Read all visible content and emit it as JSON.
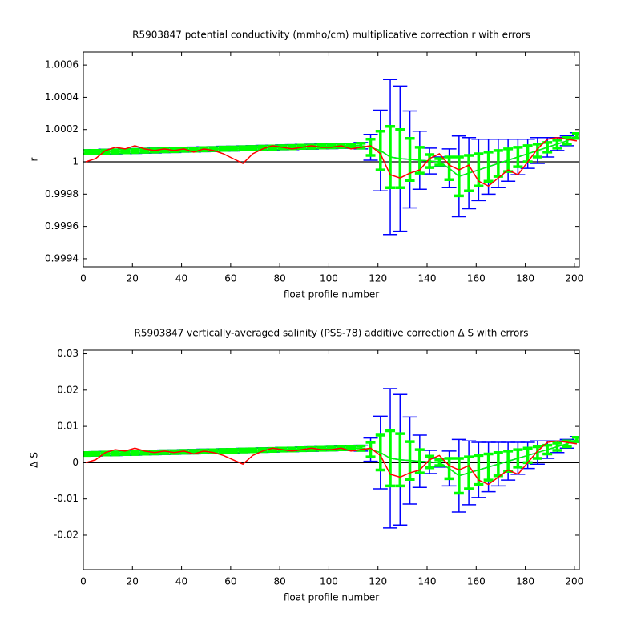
{
  "chart_data": [
    {
      "type": "errorbar",
      "title": "R5903847 potential conductivity (mmho/cm) multiplicative correction r with errors",
      "xlabel": "float profile number",
      "ylabel": "r",
      "x": [
        1,
        5,
        9,
        13,
        17,
        21,
        25,
        29,
        33,
        37,
        41,
        45,
        49,
        53,
        57,
        61,
        65,
        69,
        73,
        77,
        81,
        85,
        89,
        93,
        97,
        101,
        105,
        109,
        113,
        117,
        121,
        125,
        129,
        133,
        137,
        141,
        145,
        149,
        153,
        157,
        161,
        165,
        169,
        173,
        177,
        181,
        185,
        189,
        193,
        197,
        201
      ],
      "xlim": [
        0,
        202
      ],
      "xticks": [
        0,
        20,
        40,
        60,
        80,
        100,
        120,
        140,
        160,
        180,
        200
      ],
      "ylim": [
        0.99935,
        1.00068
      ],
      "yticks": [
        0.9994,
        0.9996,
        0.9998,
        1,
        1.0002,
        1.0004,
        1.0006
      ],
      "hline": 1,
      "series": [
        {
          "color": "#0000ff",
          "values": [
            1.00006,
            1.000061,
            1.000063,
            1.000064,
            1.000066,
            1.000067,
            1.000069,
            1.00007,
            1.000072,
            1.000073,
            1.000075,
            1.000076,
            1.000078,
            1.000079,
            1.000081,
            1.000082,
            1.000084,
            1.000085,
            1.000087,
            1.000088,
            1.00009,
            1.000091,
            1.000093,
            1.000094,
            1.000096,
            1.000097,
            1.000099,
            1.0001,
            1.0001,
            1.00009,
            1.00007,
            1.00003,
            1.00002,
            1.000015,
            1.00001,
            1.000005,
            1,
            0.99996,
            0.99991,
            0.99993,
            0.99995,
            0.99997,
            0.99999,
            1.00001,
            1.00003,
            1.00005,
            1.00007,
            1.00009,
            1.00011,
            1.00013,
            1.00016
          ],
          "errors": [
            1.5e-05,
            1.5e-05,
            1.5e-05,
            1.5e-05,
            1.5e-05,
            1.5e-05,
            1.5e-05,
            1.5e-05,
            1.5e-05,
            1.5e-05,
            1.5e-05,
            1.5e-05,
            1.5e-05,
            1.5e-05,
            1.5e-05,
            1.5e-05,
            1.5e-05,
            1.5e-05,
            1.5e-05,
            1.5e-05,
            1.5e-05,
            1.5e-05,
            1.5e-05,
            1.5e-05,
            1.5e-05,
            1.5e-05,
            1.5e-05,
            1.5e-05,
            2e-05,
            8e-05,
            0.00025,
            0.00048,
            0.00045,
            0.0003,
            0.00018,
            8e-05,
            3e-05,
            0.00012,
            0.00025,
            0.00022,
            0.00019,
            0.00017,
            0.00015,
            0.00013,
            0.00011,
            9e-05,
            8e-05,
            6e-05,
            4e-05,
            3e-05,
            2e-05
          ]
        },
        {
          "color": "#00ff00",
          "values": [
            1.00006,
            1.000061,
            1.000063,
            1.000064,
            1.000066,
            1.000067,
            1.000069,
            1.00007,
            1.000072,
            1.000073,
            1.000075,
            1.000076,
            1.000078,
            1.000079,
            1.000081,
            1.000082,
            1.000084,
            1.000085,
            1.000087,
            1.000088,
            1.00009,
            1.000091,
            1.000093,
            1.000094,
            1.000096,
            1.000097,
            1.000099,
            1.0001,
            1.0001,
            1.00009,
            1.00007,
            1.00003,
            1.00002,
            1.000015,
            1.00001,
            1.000005,
            1,
            0.99996,
            0.99991,
            0.99993,
            0.99995,
            0.99997,
            0.99999,
            1.00001,
            1.00003,
            1.00005,
            1.00007,
            1.00009,
            1.00011,
            1.00013,
            1.00016
          ],
          "errors": [
            1e-05,
            1e-05,
            1e-05,
            1e-05,
            1e-05,
            1e-05,
            1e-05,
            1e-05,
            1e-05,
            1e-05,
            1e-05,
            1e-05,
            1e-05,
            1e-05,
            1e-05,
            1e-05,
            1e-05,
            1e-05,
            1e-05,
            1e-05,
            1e-05,
            1e-05,
            1e-05,
            1e-05,
            1e-05,
            1e-05,
            1e-05,
            1e-05,
            1.5e-05,
            5e-05,
            0.00012,
            0.00019,
            0.00018,
            0.00013,
            8e-05,
            4e-05,
            2e-05,
            7e-05,
            0.00012,
            0.00011,
            0.0001,
            9e-05,
            8e-05,
            7e-05,
            6e-05,
            5e-05,
            4e-05,
            3e-05,
            2.5e-05,
            2e-05,
            1.5e-05
          ]
        },
        {
          "color": "#ff0000",
          "values": [
            1,
            1.00002,
            1.00007,
            1.00009,
            1.00008,
            1.0001,
            1.00008,
            1.00007,
            1.00008,
            1.00007,
            1.00008,
            1.00006,
            1.00008,
            1.00007,
            1.00005,
            1.00002,
            0.99999,
            1.00005,
            1.00008,
            1.0001,
            1.00009,
            1.00008,
            1.00009,
            1.0001,
            1.00009,
            1.00009,
            1.0001,
            1.00008,
            1.00009,
            1.0001,
            1.00005,
            0.99992,
            0.9999,
            0.99993,
            0.99995,
            1.00002,
            1.00005,
            0.99998,
            0.99995,
            0.99998,
            0.99988,
            0.99985,
            0.9999,
            0.99995,
            0.99992,
            1,
            1.00008,
            1.00014,
            1.00015,
            1.00014,
            1.00013
          ]
        }
      ]
    },
    {
      "type": "errorbar",
      "title": "R5903847 vertically-averaged salinity (PSS-78) additive correction Δ S with errors",
      "xlabel": "float profile number",
      "ylabel": "Δ S",
      "x": [
        1,
        5,
        9,
        13,
        17,
        21,
        25,
        29,
        33,
        37,
        41,
        45,
        49,
        53,
        57,
        61,
        65,
        69,
        73,
        77,
        81,
        85,
        89,
        93,
        97,
        101,
        105,
        109,
        113,
        117,
        121,
        125,
        129,
        133,
        137,
        141,
        145,
        149,
        153,
        157,
        161,
        165,
        169,
        173,
        177,
        181,
        185,
        189,
        193,
        197,
        201
      ],
      "xlim": [
        0,
        202
      ],
      "xticks": [
        0,
        20,
        40,
        60,
        80,
        100,
        120,
        140,
        160,
        180,
        200
      ],
      "ylim": [
        -0.0295,
        0.031
      ],
      "yticks": [
        -0.02,
        -0.01,
        0,
        0.01,
        0.02,
        0.03
      ],
      "hline": 0,
      "series": [
        {
          "color": "#0000ff",
          "values": [
            0.0024,
            0.00244,
            0.00252,
            0.00256,
            0.00264,
            0.00268,
            0.00276,
            0.0028,
            0.00288,
            0.00292,
            0.003,
            0.00304,
            0.00312,
            0.00316,
            0.00324,
            0.00328,
            0.00336,
            0.0034,
            0.00348,
            0.00352,
            0.0036,
            0.00364,
            0.00372,
            0.00376,
            0.00384,
            0.00388,
            0.00396,
            0.004,
            0.004,
            0.0036,
            0.0028,
            0.0012,
            0.0008,
            0.0006,
            0.0004,
            0.0002,
            0,
            -0.0016,
            -0.0036,
            -0.0028,
            -0.002,
            -0.0012,
            -0.0004,
            0.0004,
            0.0012,
            0.002,
            0.0028,
            0.0036,
            0.0044,
            0.0052,
            0.0064
          ],
          "errors": [
            0.0006,
            0.0006,
            0.0006,
            0.0006,
            0.0006,
            0.0006,
            0.0006,
            0.0006,
            0.0006,
            0.0006,
            0.0006,
            0.0006,
            0.0006,
            0.0006,
            0.0006,
            0.0006,
            0.0006,
            0.0006,
            0.0006,
            0.0006,
            0.0006,
            0.0006,
            0.0006,
            0.0006,
            0.0006,
            0.0006,
            0.0006,
            0.0006,
            0.0008,
            0.0032,
            0.01,
            0.0192,
            0.018,
            0.012,
            0.0072,
            0.0032,
            0.0012,
            0.0048,
            0.01,
            0.0088,
            0.0076,
            0.0068,
            0.006,
            0.0052,
            0.0044,
            0.0036,
            0.0032,
            0.0024,
            0.0016,
            0.0012,
            0.0008
          ]
        },
        {
          "color": "#00ff00",
          "values": [
            0.0024,
            0.00244,
            0.00252,
            0.00256,
            0.00264,
            0.00268,
            0.00276,
            0.0028,
            0.00288,
            0.00292,
            0.003,
            0.00304,
            0.00312,
            0.00316,
            0.00324,
            0.00328,
            0.00336,
            0.0034,
            0.00348,
            0.00352,
            0.0036,
            0.00364,
            0.00372,
            0.00376,
            0.00384,
            0.00388,
            0.00396,
            0.004,
            0.004,
            0.0036,
            0.0028,
            0.0012,
            0.0008,
            0.0006,
            0.0004,
            0.0002,
            0,
            -0.0016,
            -0.0036,
            -0.0028,
            -0.002,
            -0.0012,
            -0.0004,
            0.0004,
            0.0012,
            0.002,
            0.0028,
            0.0036,
            0.0044,
            0.0052,
            0.0064
          ],
          "errors": [
            0.0004,
            0.0004,
            0.0004,
            0.0004,
            0.0004,
            0.0004,
            0.0004,
            0.0004,
            0.0004,
            0.0004,
            0.0004,
            0.0004,
            0.0004,
            0.0004,
            0.0004,
            0.0004,
            0.0004,
            0.0004,
            0.0004,
            0.0004,
            0.0004,
            0.0004,
            0.0004,
            0.0004,
            0.0004,
            0.0004,
            0.0004,
            0.0004,
            0.0006,
            0.002,
            0.0048,
            0.0076,
            0.0072,
            0.0052,
            0.0032,
            0.0016,
            0.0008,
            0.0028,
            0.0048,
            0.0044,
            0.004,
            0.0036,
            0.0032,
            0.0028,
            0.0024,
            0.002,
            0.0016,
            0.0012,
            0.001,
            0.0008,
            0.0006
          ]
        },
        {
          "color": "#ff0000",
          "values": [
            0,
            0.0008,
            0.0028,
            0.0036,
            0.0032,
            0.004,
            0.0032,
            0.0028,
            0.0032,
            0.0028,
            0.0032,
            0.0024,
            0.0032,
            0.0028,
            0.002,
            0.0008,
            -0.0004,
            0.002,
            0.0032,
            0.004,
            0.0036,
            0.0032,
            0.0036,
            0.004,
            0.0036,
            0.0036,
            0.004,
            0.0032,
            0.0036,
            0.004,
            0.002,
            -0.0032,
            -0.004,
            -0.0028,
            -0.002,
            0.0008,
            0.002,
            -0.0008,
            -0.002,
            -0.0008,
            -0.0048,
            -0.006,
            -0.004,
            -0.002,
            -0.0032,
            0,
            0.0032,
            0.0056,
            0.006,
            0.0056,
            0.0052
          ]
        }
      ]
    }
  ]
}
